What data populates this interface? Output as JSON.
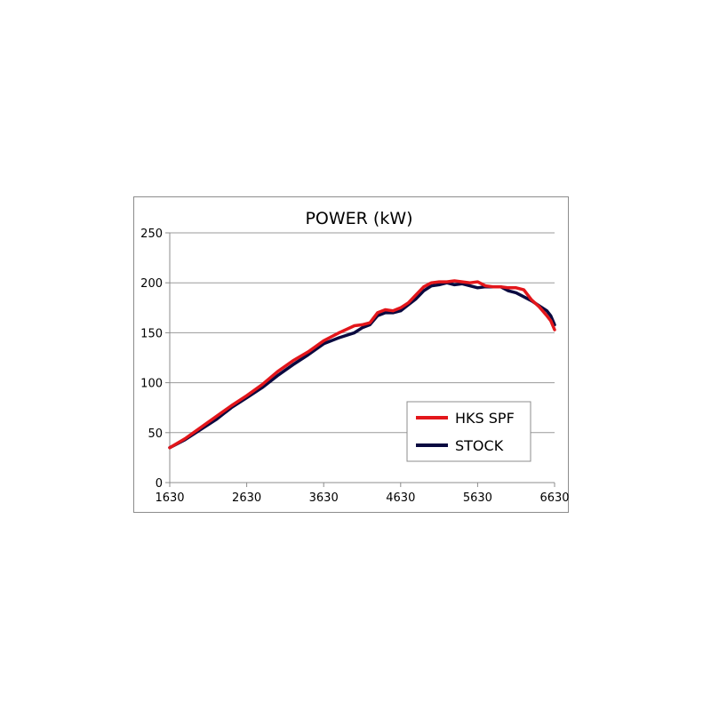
{
  "chart_data": {
    "type": "line",
    "title": "POWER (kW)",
    "xlabel": "",
    "ylabel": "",
    "x_ticks": [
      "1630",
      "2630",
      "3630",
      "4630",
      "5630",
      "6630"
    ],
    "y_ticks": [
      "0",
      "50",
      "100",
      "150",
      "200",
      "250"
    ],
    "xlim": [
      1630,
      6630
    ],
    "ylim": [
      0,
      250
    ],
    "grid": "horizontal",
    "legend_position": "bottom-right",
    "series": [
      {
        "name": "HKS SPF",
        "color": "#e3161b",
        "x": [
          1630,
          1830,
          2030,
          2230,
          2430,
          2630,
          2830,
          3030,
          3230,
          3430,
          3630,
          3830,
          4030,
          4130,
          4230,
          4330,
          4430,
          4530,
          4630,
          4730,
          4830,
          4930,
          5030,
          5130,
          5230,
          5330,
          5430,
          5530,
          5630,
          5730,
          5830,
          5930,
          6030,
          6130,
          6230,
          6330,
          6430,
          6530,
          6580,
          6630
        ],
        "y": [
          35,
          44,
          55,
          66,
          77,
          87,
          98,
          111,
          122,
          131,
          142,
          150,
          157,
          158,
          160,
          170,
          173,
          172,
          175,
          180,
          188,
          196,
          200,
          201,
          201,
          202,
          201,
          200,
          201,
          197,
          196,
          196,
          195,
          195,
          193,
          183,
          176,
          167,
          162,
          153
        ]
      },
      {
        "name": "STOCK",
        "color": "#0a0a40",
        "x": [
          1630,
          1830,
          2030,
          2230,
          2430,
          2630,
          2830,
          3030,
          3230,
          3430,
          3630,
          3830,
          4030,
          4130,
          4230,
          4330,
          4430,
          4530,
          4630,
          4730,
          4830,
          4930,
          5030,
          5130,
          5230,
          5330,
          5430,
          5530,
          5630,
          5730,
          5830,
          5930,
          6030,
          6130,
          6230,
          6330,
          6430,
          6530,
          6580,
          6630
        ],
        "y": [
          35,
          43,
          53,
          63,
          75,
          85,
          95,
          107,
          118,
          128,
          139,
          145,
          150,
          155,
          158,
          167,
          170,
          170,
          172,
          178,
          184,
          192,
          197,
          198,
          200,
          198,
          199,
          197,
          195,
          196,
          196,
          196,
          192,
          190,
          186,
          182,
          177,
          172,
          167,
          158
        ]
      }
    ]
  }
}
